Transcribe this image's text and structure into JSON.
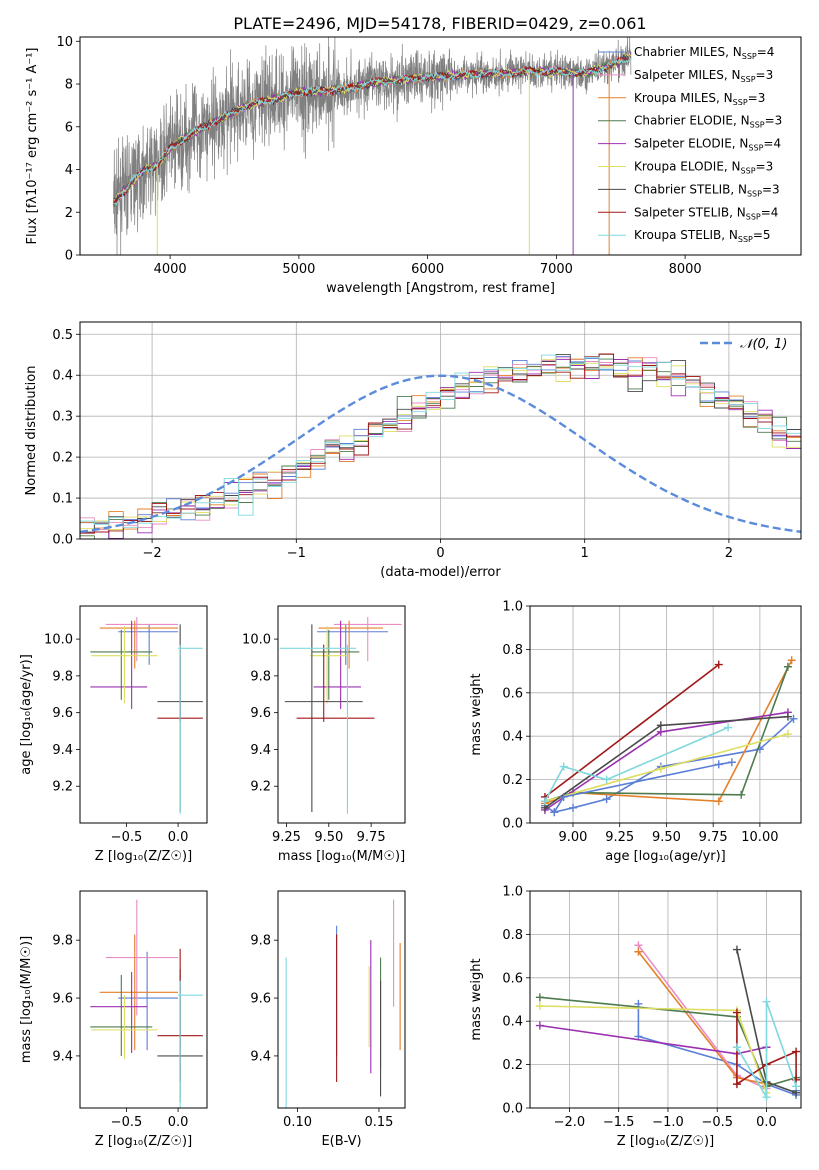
{
  "figure_title": "PLATE=2496, MJD=54178, FIBERID=0429, z=0.061",
  "legend_ssp": {
    "labels": [
      "Chabrier MILES, N",
      "Salpeter MILES, N",
      "Kroupa MILES, N",
      "Chabrier ELODIE, N",
      "Salpeter ELODIE, N",
      "Kroupa ELODIE, N",
      "Chabrier STELIB, N",
      "Salpeter STELIB, N",
      "Kroupa STELIB, N"
    ],
    "counts": [
      "=4",
      "=3",
      "=3",
      "=3",
      "=4",
      "=3",
      "=3",
      "=4",
      "=5"
    ],
    "sub": "SSP"
  },
  "colors": [
    "#5b7fd6",
    "#e88ec4",
    "#e5802a",
    "#4e7b4e",
    "#9b30b0",
    "#dede60",
    "#4a4a4a",
    "#a01818",
    "#7fd8dd"
  ],
  "chart_data": [
    {
      "type": "line",
      "id": "spectrum",
      "title": "PLATE=2496, MJD=54178, FIBERID=0429, z=0.061",
      "xlabel": "wavelength [Angstrom, rest frame]",
      "ylabel": "Flux [fλ10⁻¹⁷ erg cm⁻² s⁻¹ A⁻¹]",
      "xlim": [
        3300,
        8900
      ],
      "ylim": [
        0,
        10.2
      ],
      "xticks": [
        "4000",
        "5000",
        "6000",
        "7000",
        "8000"
      ],
      "yticks": [
        "0",
        "2",
        "4",
        "6",
        "8",
        "10"
      ],
      "data_range": [
        3560,
        7580
      ],
      "model_anchor_points": [
        [
          3560,
          2.4
        ],
        [
          3700,
          3.4
        ],
        [
          3800,
          4.0
        ],
        [
          3900,
          4.2
        ],
        [
          4000,
          5.0
        ],
        [
          4200,
          5.8
        ],
        [
          4400,
          6.4
        ],
        [
          4600,
          7.0
        ],
        [
          4800,
          7.3
        ],
        [
          5000,
          7.6
        ],
        [
          5200,
          7.7
        ],
        [
          5400,
          7.8
        ],
        [
          5600,
          8.1
        ],
        [
          5800,
          8.2
        ],
        [
          6000,
          8.3
        ],
        [
          6200,
          8.4
        ],
        [
          6400,
          8.5
        ],
        [
          6600,
          8.5
        ],
        [
          6800,
          8.6
        ],
        [
          7000,
          8.6
        ],
        [
          7200,
          8.5
        ],
        [
          7400,
          8.8
        ],
        [
          7580,
          9.3
        ]
      ]
    },
    {
      "type": "bar",
      "id": "residuals",
      "xlabel": "(data-model)/error",
      "ylabel": "Normed distribution",
      "xlim": [
        -2.5,
        2.5
      ],
      "ylim": [
        0,
        0.53
      ],
      "xticks": [
        "−2",
        "−1",
        "0",
        "1",
        "2"
      ],
      "yticks": [
        "0.0",
        "0.1",
        "0.2",
        "0.3",
        "0.4",
        "0.5"
      ],
      "legend": "𝒩(0, 1)",
      "bin_edges_start": -2.5,
      "bin_width": 0.1,
      "hist_base": [
        0.015,
        0.025,
        0.03,
        0.04,
        0.045,
        0.055,
        0.065,
        0.075,
        0.085,
        0.095,
        0.105,
        0.12,
        0.13,
        0.145,
        0.16,
        0.175,
        0.19,
        0.21,
        0.225,
        0.245,
        0.26,
        0.28,
        0.3,
        0.32,
        0.335,
        0.35,
        0.365,
        0.38,
        0.39,
        0.4,
        0.41,
        0.415,
        0.42,
        0.425,
        0.43,
        0.43,
        0.425,
        0.42,
        0.415,
        0.41,
        0.4,
        0.39,
        0.375,
        0.36,
        0.34,
        0.325,
        0.305,
        0.29,
        0.27,
        0.25
      ]
    },
    {
      "type": "scatter",
      "id": "age-vs-Z",
      "xlabel": "Z [log₁₀(Z/Z☉)]",
      "ylabel": "age  [log₁₀(age/yr)]",
      "xlim": [
        -0.95,
        0.28
      ],
      "ylim": [
        9.0,
        10.18
      ],
      "xticks": [
        "−0.5",
        "0.0"
      ],
      "yticks": [
        "9.2",
        "9.4",
        "9.6",
        "9.8",
        "10.0"
      ],
      "points": [
        {
          "x": -0.28,
          "y": 10.04,
          "xe": [
            0.3,
            0.28
          ],
          "ye": [
            0.18,
            0.04
          ]
        },
        {
          "x": -0.4,
          "y": 10.08,
          "xe": [
            0.3,
            0.4
          ],
          "ye": [
            0.2,
            0.04
          ]
        },
        {
          "x": -0.42,
          "y": 10.06,
          "xe": [
            0.34,
            0.42
          ],
          "ye": [
            0.22,
            0.04
          ]
        },
        {
          "x": -0.55,
          "y": 9.93,
          "xe": [
            0.3,
            0.3
          ],
          "ye": [
            0.26,
            0.12
          ]
        },
        {
          "x": -0.45,
          "y": 9.74,
          "xe": [
            0.4,
            0.15
          ],
          "ye": [
            0.12,
            0.36
          ]
        },
        {
          "x": -0.52,
          "y": 9.91,
          "xe": [
            0.32,
            0.32
          ],
          "ye": [
            0.26,
            0.16
          ]
        },
        {
          "x": 0.02,
          "y": 9.66,
          "xe": [
            0.22,
            0.22
          ],
          "ye": [
            0.6,
            0.42
          ]
        },
        {
          "x": 0.02,
          "y": 9.57,
          "xe": [
            0.22,
            0.22
          ],
          "ye": [
            0.02,
            0.4
          ]
        },
        {
          "x": 0.02,
          "y": 9.95,
          "xe": [
            0.02,
            0.22
          ],
          "ye": [
            0.9,
            0.02
          ]
        }
      ]
    },
    {
      "type": "scatter",
      "id": "age-vs-mass",
      "xlabel": "mass [log₁₀(M/M☉)]",
      "ylabel": "",
      "xlim": [
        9.2,
        9.95
      ],
      "ylim": [
        9.0,
        10.18
      ],
      "xticks": [
        "9.25",
        "9.50",
        "9.75"
      ],
      "yticks": [
        "9.2",
        "9.4",
        "9.6",
        "9.8",
        "10.0"
      ],
      "points": [
        {
          "x": 9.6,
          "y": 10.04,
          "xe": [
            0.17,
            0.25
          ],
          "ye": [
            0.18,
            0.04
          ]
        },
        {
          "x": 9.73,
          "y": 10.08,
          "xe": [
            0.2,
            0.2
          ],
          "ye": [
            0.2,
            0.04
          ]
        },
        {
          "x": 9.62,
          "y": 10.06,
          "xe": [
            0.18,
            0.2
          ],
          "ye": [
            0.22,
            0.04
          ]
        },
        {
          "x": 9.5,
          "y": 9.93,
          "xe": [
            0.1,
            0.18
          ],
          "ye": [
            0.26,
            0.12
          ]
        },
        {
          "x": 9.57,
          "y": 9.74,
          "xe": [
            0.16,
            0.12
          ],
          "ye": [
            0.12,
            0.36
          ]
        },
        {
          "x": 9.49,
          "y": 9.91,
          "xe": [
            0.1,
            0.12
          ],
          "ye": [
            0.26,
            0.16
          ]
        },
        {
          "x": 9.4,
          "y": 9.66,
          "xe": [
            0.16,
            0.3
          ],
          "ye": [
            0.6,
            0.42
          ]
        },
        {
          "x": 9.47,
          "y": 9.57,
          "xe": [
            0.16,
            0.3
          ],
          "ye": [
            0.02,
            0.4
          ]
        },
        {
          "x": 9.61,
          "y": 9.95,
          "xe": [
            0.4,
            0.05
          ],
          "ye": [
            0.9,
            0.02
          ]
        }
      ]
    },
    {
      "type": "line",
      "id": "weight-vs-age",
      "xlabel": "age  [log₁₀(age/yr)]",
      "ylabel": "mass weight",
      "xlim": [
        8.77,
        10.22
      ],
      "ylim": [
        0,
        1.0
      ],
      "xticks": [
        "9.00",
        "9.25",
        "9.50",
        "9.75",
        "10.00"
      ],
      "yticks": [
        "0.0",
        "0.2",
        "0.4",
        "0.6",
        "0.8",
        "1.0"
      ],
      "series": [
        {
          "x": [
            8.85,
            8.9,
            9.0,
            9.18,
            9.47,
            10.0,
            10.18
          ],
          "y": [
            0.08,
            0.05,
            0.07,
            0.11,
            0.26,
            0.34,
            0.48
          ]
        },
        {
          "x": 8.9,
          "y": 0.05
        },
        {
          "x": [
            8.85,
            9.0,
            9.78,
            10.17
          ],
          "y": [
            0.09,
            0.14,
            0.1,
            0.75
          ]
        },
        {
          "x": [
            8.85,
            9.0,
            9.9,
            10.15
          ],
          "y": [
            0.1,
            0.14,
            0.13,
            0.72
          ]
        },
        {
          "x": [
            8.85,
            9.47,
            10.15
          ],
          "y": [
            0.06,
            0.42,
            0.51
          ]
        },
        {
          "x": [
            8.85,
            9.47,
            10.15
          ],
          "y": [
            0.1,
            0.25,
            0.41
          ]
        },
        {
          "x": [
            8.85,
            9.47,
            10.15
          ],
          "y": [
            0.07,
            0.45,
            0.49
          ]
        },
        {
          "x": [
            8.85,
            9.78
          ],
          "y": [
            0.12,
            0.73
          ]
        },
        {
          "x": [
            8.85,
            8.95,
            9.18,
            9.83
          ],
          "y": [
            0.1,
            0.26,
            0.2,
            0.44
          ]
        },
        {
          "x": [
            8.9,
            8.95,
            9.78,
            9.85
          ],
          "y": [
            0.05,
            0.12,
            0.27,
            0.28
          ]
        }
      ]
    },
    {
      "type": "scatter",
      "id": "mass-vs-Z",
      "xlabel": "Z [log₁₀(Z/Z☉)]",
      "ylabel": "mass [log₁₀(M/M☉)]",
      "xlim": [
        -0.95,
        0.28
      ],
      "ylim": [
        9.22,
        9.97
      ],
      "xticks": [
        "−0.5",
        "0.0"
      ],
      "yticks": [
        "9.4",
        "9.6",
        "9.8"
      ],
      "points": [
        {
          "x": -0.3,
          "y": 9.6,
          "xe": [
            0.28,
            0.3
          ],
          "ye": [
            0.18,
            0.16
          ]
        },
        {
          "x": -0.4,
          "y": 9.74,
          "xe": [
            0.3,
            0.4
          ],
          "ye": [
            0.2,
            0.2
          ]
        },
        {
          "x": -0.42,
          "y": 9.62,
          "xe": [
            0.34,
            0.42
          ],
          "ye": [
            0.2,
            0.2
          ]
        },
        {
          "x": -0.55,
          "y": 9.5,
          "xe": [
            0.3,
            0.3
          ],
          "ye": [
            0.1,
            0.18
          ]
        },
        {
          "x": -0.45,
          "y": 9.57,
          "xe": [
            0.4,
            0.15
          ],
          "ye": [
            0.16,
            0.12
          ]
        },
        {
          "x": -0.52,
          "y": 9.49,
          "xe": [
            0.32,
            0.32
          ],
          "ye": [
            0.1,
            0.12
          ]
        },
        {
          "x": 0.02,
          "y": 9.4,
          "xe": [
            0.22,
            0.22
          ],
          "ye": [
            0.16,
            0.3
          ]
        },
        {
          "x": 0.02,
          "y": 9.47,
          "xe": [
            0.22,
            0.22
          ],
          "ye": [
            0.16,
            0.3
          ]
        },
        {
          "x": 0.02,
          "y": 9.61,
          "xe": [
            0.02,
            0.22
          ],
          "ye": [
            0.4,
            0.05
          ]
        }
      ]
    },
    {
      "type": "scatter",
      "id": "mass-vs-ebv",
      "xlabel": "E(B-V)",
      "ylabel": "",
      "xlim": [
        0.088,
        0.166
      ],
      "ylim": [
        9.22,
        9.97
      ],
      "xticks": [
        "0.10",
        "0.15"
      ],
      "yticks": [
        "9.4",
        "9.6",
        "9.8"
      ],
      "points": [
        {
          "x": 0.124,
          "y": 9.6,
          "ye": [
            0.2,
            0.25
          ]
        },
        {
          "x": 0.159,
          "y": 9.74,
          "ye": [
            0.17,
            0.2
          ]
        },
        {
          "x": 0.163,
          "y": 9.62,
          "ye": [
            0.2,
            0.17
          ]
        },
        {
          "x": 0.151,
          "y": 9.5,
          "ye": [
            0.14,
            0.24
          ]
        },
        {
          "x": 0.145,
          "y": 9.57,
          "ye": [
            0.23,
            0.23
          ]
        },
        {
          "x": 0.144,
          "y": 9.49,
          "ye": [
            0.06,
            0.22
          ]
        },
        {
          "x": 0.151,
          "y": 9.4,
          "ye": [
            0.14,
            0.26
          ]
        },
        {
          "x": 0.124,
          "y": 9.47,
          "ye": [
            0.16,
            0.35
          ]
        },
        {
          "x": 0.093,
          "y": 9.61,
          "ye": [
            0.4,
            0.13
          ]
        }
      ]
    },
    {
      "type": "line",
      "id": "weight-vs-Z",
      "xlabel": "Z [log₁₀(Z/Z☉)]",
      "ylabel": "mass weight",
      "xlim": [
        -2.4,
        0.35
      ],
      "ylim": [
        0,
        1.0
      ],
      "xticks": [
        "−2.0",
        "−1.5",
        "−1.0",
        "−0.5",
        "0.0"
      ],
      "yticks": [
        "0.0",
        "0.2",
        "0.4",
        "0.6",
        "0.8",
        "1.0"
      ],
      "series": [
        {
          "x": [
            -1.3,
            -1.3,
            -0.3,
            0.0,
            0.3,
            0.3
          ],
          "y": [
            0.48,
            0.33,
            0.2,
            0.11,
            0.06,
            0.08
          ]
        },
        {
          "x": [
            -1.3,
            -0.3,
            0.0
          ],
          "y": [
            0.75,
            0.15,
            0.09
          ]
        },
        {
          "x": [
            -1.3,
            -0.3,
            0.0
          ],
          "y": [
            0.72,
            0.14,
            0.11
          ]
        },
        {
          "x": [
            -2.3,
            -0.3,
            0.0,
            0.3
          ],
          "y": [
            0.51,
            0.42,
            0.1,
            0.14
          ]
        },
        {
          "x": [
            -2.3,
            -0.3,
            0.0
          ],
          "y": [
            0.38,
            0.25,
            0.28
          ]
        },
        {
          "x": [
            -2.3,
            -0.3,
            0.0
          ],
          "y": [
            0.47,
            0.45,
            0.07
          ]
        },
        {
          "x": [
            -0.3,
            0.0,
            0.3
          ],
          "y": [
            0.73,
            0.12,
            0.07
          ]
        },
        {
          "x": [
            -0.3,
            -0.3,
            0.0,
            0.3,
            0.3
          ],
          "y": [
            0.44,
            0.11,
            0.2,
            0.26,
            0.13
          ]
        },
        {
          "x": [
            -0.3,
            0.0,
            0.0,
            0.3
          ],
          "y": [
            0.28,
            0.05,
            0.49,
            0.1
          ]
        }
      ]
    }
  ]
}
